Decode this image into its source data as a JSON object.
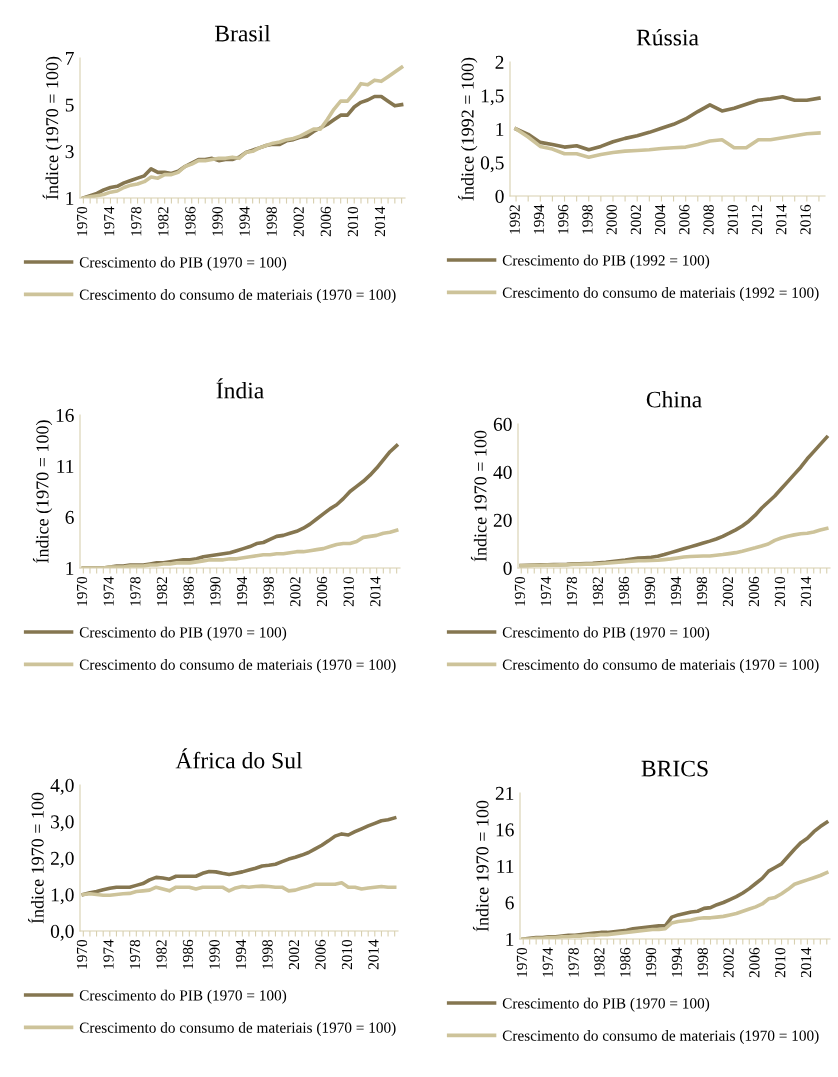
{
  "chart_data": [
    {
      "type": "line",
      "title": "Brasil",
      "ylabel": "Índice (1970 = 100)",
      "categories": [
        "1970",
        null,
        null,
        null,
        "1974",
        null,
        null,
        null,
        "1978",
        null,
        null,
        null,
        "1982",
        null,
        null,
        null,
        "1986",
        null,
        null,
        null,
        "1990",
        null,
        null,
        null,
        "1994",
        null,
        null,
        null,
        "1998",
        null,
        null,
        null,
        "2002",
        null,
        null,
        null,
        "2006",
        null,
        null,
        null,
        "2010",
        null,
        null,
        null,
        "2014",
        null,
        null,
        null
      ],
      "ylim": [
        1,
        7
      ],
      "yticks": [
        1,
        3,
        5,
        7
      ],
      "legend": "bottom",
      "grid": false,
      "series": [
        {
          "name": "Crescimento do PIB (1970 = 100)",
          "color": "#857650",
          "values": [
            1.0,
            1.1,
            1.2,
            1.35,
            1.45,
            1.5,
            1.65,
            1.75,
            1.85,
            1.95,
            2.25,
            2.1,
            2.1,
            2.05,
            2.15,
            2.35,
            2.5,
            2.65,
            2.65,
            2.7,
            2.6,
            2.65,
            2.65,
            2.75,
            2.95,
            3.05,
            3.15,
            3.25,
            3.3,
            3.3,
            3.45,
            3.5,
            3.6,
            3.65,
            3.85,
            4.0,
            4.15,
            4.35,
            4.55,
            4.55,
            4.9,
            5.1,
            5.2,
            5.35,
            5.35,
            5.15,
            4.95,
            5.0
          ]
        },
        {
          "name": "Crescimento do consumo de materiais (1970 = 100)",
          "color": "#cdc39a",
          "values": [
            1.0,
            1.05,
            1.1,
            1.15,
            1.25,
            1.3,
            1.45,
            1.55,
            1.6,
            1.7,
            1.9,
            1.85,
            2.0,
            2.0,
            2.1,
            2.35,
            2.45,
            2.6,
            2.6,
            2.65,
            2.7,
            2.7,
            2.75,
            2.7,
            2.95,
            3.0,
            3.15,
            3.25,
            3.35,
            3.4,
            3.5,
            3.55,
            3.65,
            3.8,
            3.95,
            3.95,
            4.35,
            4.8,
            5.15,
            5.15,
            5.5,
            5.9,
            5.85,
            6.05,
            6.0,
            6.2,
            6.4,
            6.6
          ]
        }
      ]
    },
    {
      "type": "line",
      "title": "Rússia",
      "ylabel": "Índice (1992 = 100)",
      "categories": [
        "1992",
        null,
        "1994",
        null,
        "1996",
        null,
        "1998",
        null,
        "2000",
        null,
        "2002",
        null,
        "2004",
        null,
        "2006",
        null,
        "2008",
        null,
        "2010",
        null,
        "2012",
        null,
        "2014",
        null,
        "2016",
        null
      ],
      "ylim": [
        0,
        2
      ],
      "yticks": [
        0,
        {
          "value": 0.5,
          "label": "0,5"
        },
        1,
        {
          "value": 1.5,
          "label": "1,5"
        },
        2
      ],
      "legend": "bottom",
      "grid": false,
      "series": [
        {
          "name": "Crescimento do PIB (1992 = 100)",
          "color": "#857650",
          "values": [
            1.0,
            0.92,
            0.8,
            0.77,
            0.73,
            0.75,
            0.69,
            0.74,
            0.81,
            0.86,
            0.9,
            0.95,
            1.01,
            1.07,
            1.15,
            1.26,
            1.36,
            1.27,
            1.31,
            1.37,
            1.43,
            1.45,
            1.48,
            1.43,
            1.43,
            1.46
          ]
        },
        {
          "name": "Crescimento do consumo de materiais (1992 = 100)",
          "color": "#cdc39a",
          "values": [
            1.0,
            0.88,
            0.74,
            0.7,
            0.63,
            0.63,
            0.58,
            0.62,
            0.65,
            0.67,
            0.68,
            0.69,
            0.71,
            0.72,
            0.73,
            0.77,
            0.82,
            0.84,
            0.72,
            0.72,
            0.84,
            0.84,
            0.87,
            0.9,
            0.93,
            0.94
          ]
        }
      ]
    },
    {
      "type": "line",
      "title": "Índia",
      "ylabel": "Índice (1970 = 100)",
      "categories": [
        "1970",
        null,
        null,
        null,
        "1974",
        null,
        null,
        null,
        "1978",
        null,
        null,
        null,
        "1982",
        null,
        null,
        null,
        "1986",
        null,
        null,
        null,
        "1990",
        null,
        null,
        null,
        "1994",
        null,
        null,
        null,
        "1998",
        null,
        null,
        null,
        "2002",
        null,
        null,
        null,
        "2006",
        null,
        null,
        null,
        "2010",
        null,
        null,
        null,
        "2014",
        null,
        null,
        null
      ],
      "ylim": [
        1,
        16
      ],
      "yticks": [
        1,
        6,
        11,
        16
      ],
      "legend": "bottom",
      "grid": false,
      "series": [
        {
          "name": "Crescimento do PIB (1970 = 100)",
          "color": "#857650",
          "values": [
            1.0,
            1.0,
            1.0,
            1.0,
            1.1,
            1.2,
            1.2,
            1.3,
            1.3,
            1.3,
            1.4,
            1.5,
            1.5,
            1.6,
            1.7,
            1.8,
            1.8,
            1.9,
            2.1,
            2.2,
            2.3,
            2.4,
            2.5,
            2.7,
            2.9,
            3.1,
            3.4,
            3.5,
            3.8,
            4.1,
            4.2,
            4.4,
            4.6,
            4.9,
            5.3,
            5.8,
            6.3,
            6.8,
            7.2,
            7.8,
            8.5,
            9.0,
            9.5,
            10.1,
            10.8,
            11.6,
            12.4,
            13.0
          ]
        },
        {
          "name": "Crescimento do consumo de materiais (1970 = 100)",
          "color": "#cdc39a",
          "values": [
            1.0,
            1.0,
            1.0,
            1.0,
            1.1,
            1.1,
            1.1,
            1.2,
            1.2,
            1.2,
            1.3,
            1.3,
            1.4,
            1.4,
            1.5,
            1.5,
            1.5,
            1.6,
            1.7,
            1.8,
            1.8,
            1.8,
            1.9,
            1.9,
            2.0,
            2.1,
            2.2,
            2.3,
            2.3,
            2.4,
            2.4,
            2.5,
            2.6,
            2.6,
            2.7,
            2.8,
            2.9,
            3.1,
            3.3,
            3.4,
            3.4,
            3.6,
            4.0,
            4.1,
            4.2,
            4.4,
            4.5,
            4.7
          ]
        }
      ]
    },
    {
      "type": "line",
      "title": "China",
      "ylabel": "Índice 1970 = 100",
      "categories": [
        "1970",
        null,
        null,
        null,
        "1974",
        null,
        null,
        null,
        "1978",
        null,
        null,
        null,
        "1982",
        null,
        null,
        null,
        "1986",
        null,
        null,
        null,
        "1990",
        null,
        null,
        null,
        "1994",
        null,
        null,
        null,
        "1998",
        null,
        null,
        null,
        "2002",
        null,
        null,
        null,
        "2006",
        null,
        null,
        null,
        "2010",
        null,
        null,
        null,
        "2014",
        null,
        null,
        null
      ],
      "ylim": [
        0,
        60
      ],
      "yticks": [
        0,
        20,
        40,
        60
      ],
      "legend": "bottom",
      "grid": false,
      "series": [
        {
          "name": "Crescimento do PIB (1970 = 100)",
          "color": "#857650",
          "values": [
            1.0,
            1.1,
            1.2,
            1.3,
            1.3,
            1.4,
            1.4,
            1.5,
            1.7,
            1.8,
            1.9,
            2.0,
            2.2,
            2.4,
            2.7,
            3.0,
            3.3,
            3.7,
            4.1,
            4.3,
            4.5,
            4.9,
            5.6,
            6.4,
            7.2,
            8.0,
            8.8,
            9.6,
            10.4,
            11.2,
            12.1,
            13.2,
            14.5,
            15.9,
            17.5,
            19.5,
            22.0,
            25.0,
            27.5,
            30.0,
            33.0,
            36.0,
            39.0,
            42.0,
            45.5,
            48.5,
            51.5,
            54.5
          ]
        },
        {
          "name": "Crescimento do consumo de materiais (1970 = 100)",
          "color": "#cdc39a",
          "values": [
            1.0,
            1.0,
            1.1,
            1.1,
            1.2,
            1.2,
            1.3,
            1.3,
            1.5,
            1.5,
            1.6,
            1.6,
            1.8,
            2.0,
            2.2,
            2.4,
            2.6,
            2.8,
            3.0,
            3.0,
            3.1,
            3.2,
            3.5,
            3.8,
            4.2,
            4.6,
            4.8,
            4.9,
            5.0,
            5.0,
            5.3,
            5.6,
            6.0,
            6.4,
            7.0,
            7.7,
            8.4,
            9.2,
            10.0,
            11.5,
            12.5,
            13.2,
            13.8,
            14.3,
            14.5,
            15.0,
            15.8,
            16.5
          ]
        }
      ]
    },
    {
      "type": "line",
      "title": "África do Sul",
      "ylabel": "Índice 1970 = 100",
      "categories": [
        "1970",
        null,
        null,
        null,
        "1974",
        null,
        null,
        null,
        "1978",
        null,
        null,
        null,
        "1982",
        null,
        null,
        null,
        "1986",
        null,
        null,
        null,
        "1990",
        null,
        null,
        null,
        "1994",
        null,
        null,
        null,
        "1998",
        null,
        null,
        null,
        "2002",
        null,
        null,
        null,
        "2006",
        null,
        null,
        null,
        "2010",
        null,
        null,
        null,
        "2014",
        null,
        null,
        null
      ],
      "ylim": [
        0,
        4
      ],
      "yticks": [
        {
          "value": 0,
          "label": "0,0"
        },
        {
          "value": 1,
          "label": "1,0"
        },
        {
          "value": 2,
          "label": "2,0"
        },
        {
          "value": 3,
          "label": "3,0"
        },
        {
          "value": 4,
          "label": "4,0"
        }
      ],
      "legend": "bottom",
      "grid": false,
      "series": [
        {
          "name": "Crescimento do PIB (1970 = 100)",
          "color": "#857650",
          "values": [
            1.0,
            1.05,
            1.08,
            1.13,
            1.17,
            1.2,
            1.2,
            1.2,
            1.25,
            1.3,
            1.4,
            1.47,
            1.45,
            1.42,
            1.5,
            1.5,
            1.5,
            1.5,
            1.58,
            1.63,
            1.62,
            1.58,
            1.55,
            1.58,
            1.62,
            1.67,
            1.72,
            1.78,
            1.8,
            1.83,
            1.9,
            1.97,
            2.02,
            2.08,
            2.15,
            2.25,
            2.35,
            2.47,
            2.6,
            2.66,
            2.63,
            2.72,
            2.8,
            2.88,
            2.95,
            3.02,
            3.05,
            3.1
          ]
        },
        {
          "name": "Crescimento do consumo de materiais (1970 = 100)",
          "color": "#cdc39a",
          "values": [
            1.0,
            1.02,
            1.0,
            0.98,
            0.98,
            1.0,
            1.02,
            1.03,
            1.08,
            1.1,
            1.12,
            1.2,
            1.15,
            1.1,
            1.2,
            1.2,
            1.2,
            1.15,
            1.2,
            1.2,
            1.2,
            1.2,
            1.1,
            1.18,
            1.22,
            1.2,
            1.22,
            1.23,
            1.22,
            1.2,
            1.2,
            1.1,
            1.12,
            1.18,
            1.22,
            1.28,
            1.28,
            1.28,
            1.28,
            1.32,
            1.2,
            1.2,
            1.15,
            1.18,
            1.2,
            1.22,
            1.2,
            1.2
          ]
        }
      ]
    },
    {
      "type": "line",
      "title": "BRICS",
      "ylabel": "Índice 1970 = 100",
      "categories": [
        "1970",
        null,
        null,
        null,
        "1974",
        null,
        null,
        null,
        "1978",
        null,
        null,
        null,
        "1982",
        null,
        null,
        null,
        "1986",
        null,
        null,
        null,
        "1990",
        null,
        null,
        null,
        "1994",
        null,
        null,
        null,
        "1998",
        null,
        null,
        null,
        "2002",
        null,
        null,
        null,
        "2006",
        null,
        null,
        null,
        "2010",
        null,
        null,
        null,
        "2014",
        null,
        null,
        null
      ],
      "ylim": [
        1,
        21
      ],
      "yticks": [
        1,
        6,
        11,
        16,
        21
      ],
      "legend": "bottom",
      "grid": false,
      "series": [
        {
          "name": "Crescimento do PIB (1970 = 100)",
          "color": "#857650",
          "values": [
            1.0,
            1.1,
            1.2,
            1.2,
            1.3,
            1.3,
            1.4,
            1.5,
            1.5,
            1.6,
            1.7,
            1.8,
            1.9,
            1.9,
            2.0,
            2.1,
            2.2,
            2.4,
            2.5,
            2.6,
            2.7,
            2.8,
            2.8,
            4.0,
            4.3,
            4.5,
            4.7,
            4.8,
            5.2,
            5.3,
            5.7,
            6.0,
            6.4,
            6.8,
            7.3,
            7.9,
            8.6,
            9.3,
            10.3,
            10.8,
            11.3,
            12.3,
            13.3,
            14.2,
            14.8,
            15.7,
            16.4,
            17.0
          ]
        },
        {
          "name": "Crescimento do consumo de materiais (1970 = 100)",
          "color": "#cdc39a",
          "values": [
            1.0,
            1.0,
            1.1,
            1.1,
            1.2,
            1.2,
            1.3,
            1.3,
            1.4,
            1.4,
            1.5,
            1.5,
            1.6,
            1.6,
            1.7,
            1.8,
            1.9,
            2.0,
            2.1,
            2.2,
            2.3,
            2.3,
            2.4,
            3.2,
            3.4,
            3.5,
            3.6,
            3.8,
            3.9,
            3.9,
            4.0,
            4.1,
            4.3,
            4.5,
            4.8,
            5.1,
            5.4,
            5.8,
            6.5,
            6.7,
            7.2,
            7.8,
            8.5,
            8.8,
            9.1,
            9.4,
            9.7,
            10.1
          ]
        }
      ]
    }
  ]
}
